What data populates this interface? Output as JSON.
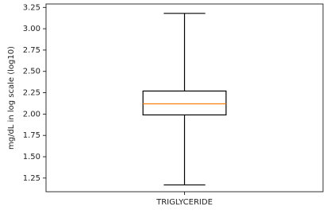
{
  "chart_data": {
    "type": "box",
    "ylabel": "mg/dL in log scale (log10)",
    "categories": [
      "TRIGLYCERIDE"
    ],
    "boxes": [
      {
        "min": 1.17,
        "q1": 1.99,
        "median": 2.12,
        "q3": 2.27,
        "max": 3.18
      }
    ],
    "color": "#000000",
    "median_color": "#ff7f0e",
    "ylim": [
      1.09,
      3.29
    ],
    "yticks": [
      {
        "value": 1.25,
        "label": "1.25"
      },
      {
        "value": 1.5,
        "label": "1.50"
      },
      {
        "value": 1.75,
        "label": "1.75"
      },
      {
        "value": 2,
        "label": "2.00"
      },
      {
        "value": 2.25,
        "label": "2.25"
      },
      {
        "value": 2.5,
        "label": "2.50"
      },
      {
        "value": 2.75,
        "label": "2.75"
      },
      {
        "value": 3,
        "label": "3.00"
      },
      {
        "value": 3.25,
        "label": "3.25"
      }
    ]
  }
}
